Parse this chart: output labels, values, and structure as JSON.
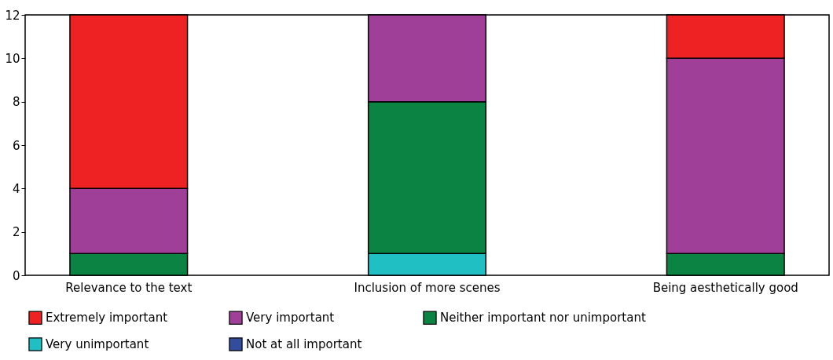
{
  "chart_data": {
    "type": "bar",
    "stacked": true,
    "categories": [
      "Relevance to the text",
      "Inclusion of more scenes",
      "Being aesthetically good"
    ],
    "series": [
      {
        "name": "Not at all important",
        "color": "#344c9e",
        "values": [
          0,
          0,
          0
        ]
      },
      {
        "name": "Very unimportant",
        "color": "#1fbfc4",
        "values": [
          0,
          1,
          0
        ]
      },
      {
        "name": "Neither important nor unimportant",
        "color": "#0b8343",
        "values": [
          1,
          7,
          1
        ]
      },
      {
        "name": "Very important",
        "color": "#a03f98",
        "values": [
          3,
          4,
          9
        ]
      },
      {
        "name": "Extremely important",
        "color": "#ee2222",
        "values": [
          8,
          0,
          2
        ]
      }
    ],
    "ylim": [
      0,
      12
    ],
    "yticks": [
      0,
      2,
      4,
      6,
      8,
      10,
      12
    ],
    "grid": false,
    "legend": "bottom"
  }
}
